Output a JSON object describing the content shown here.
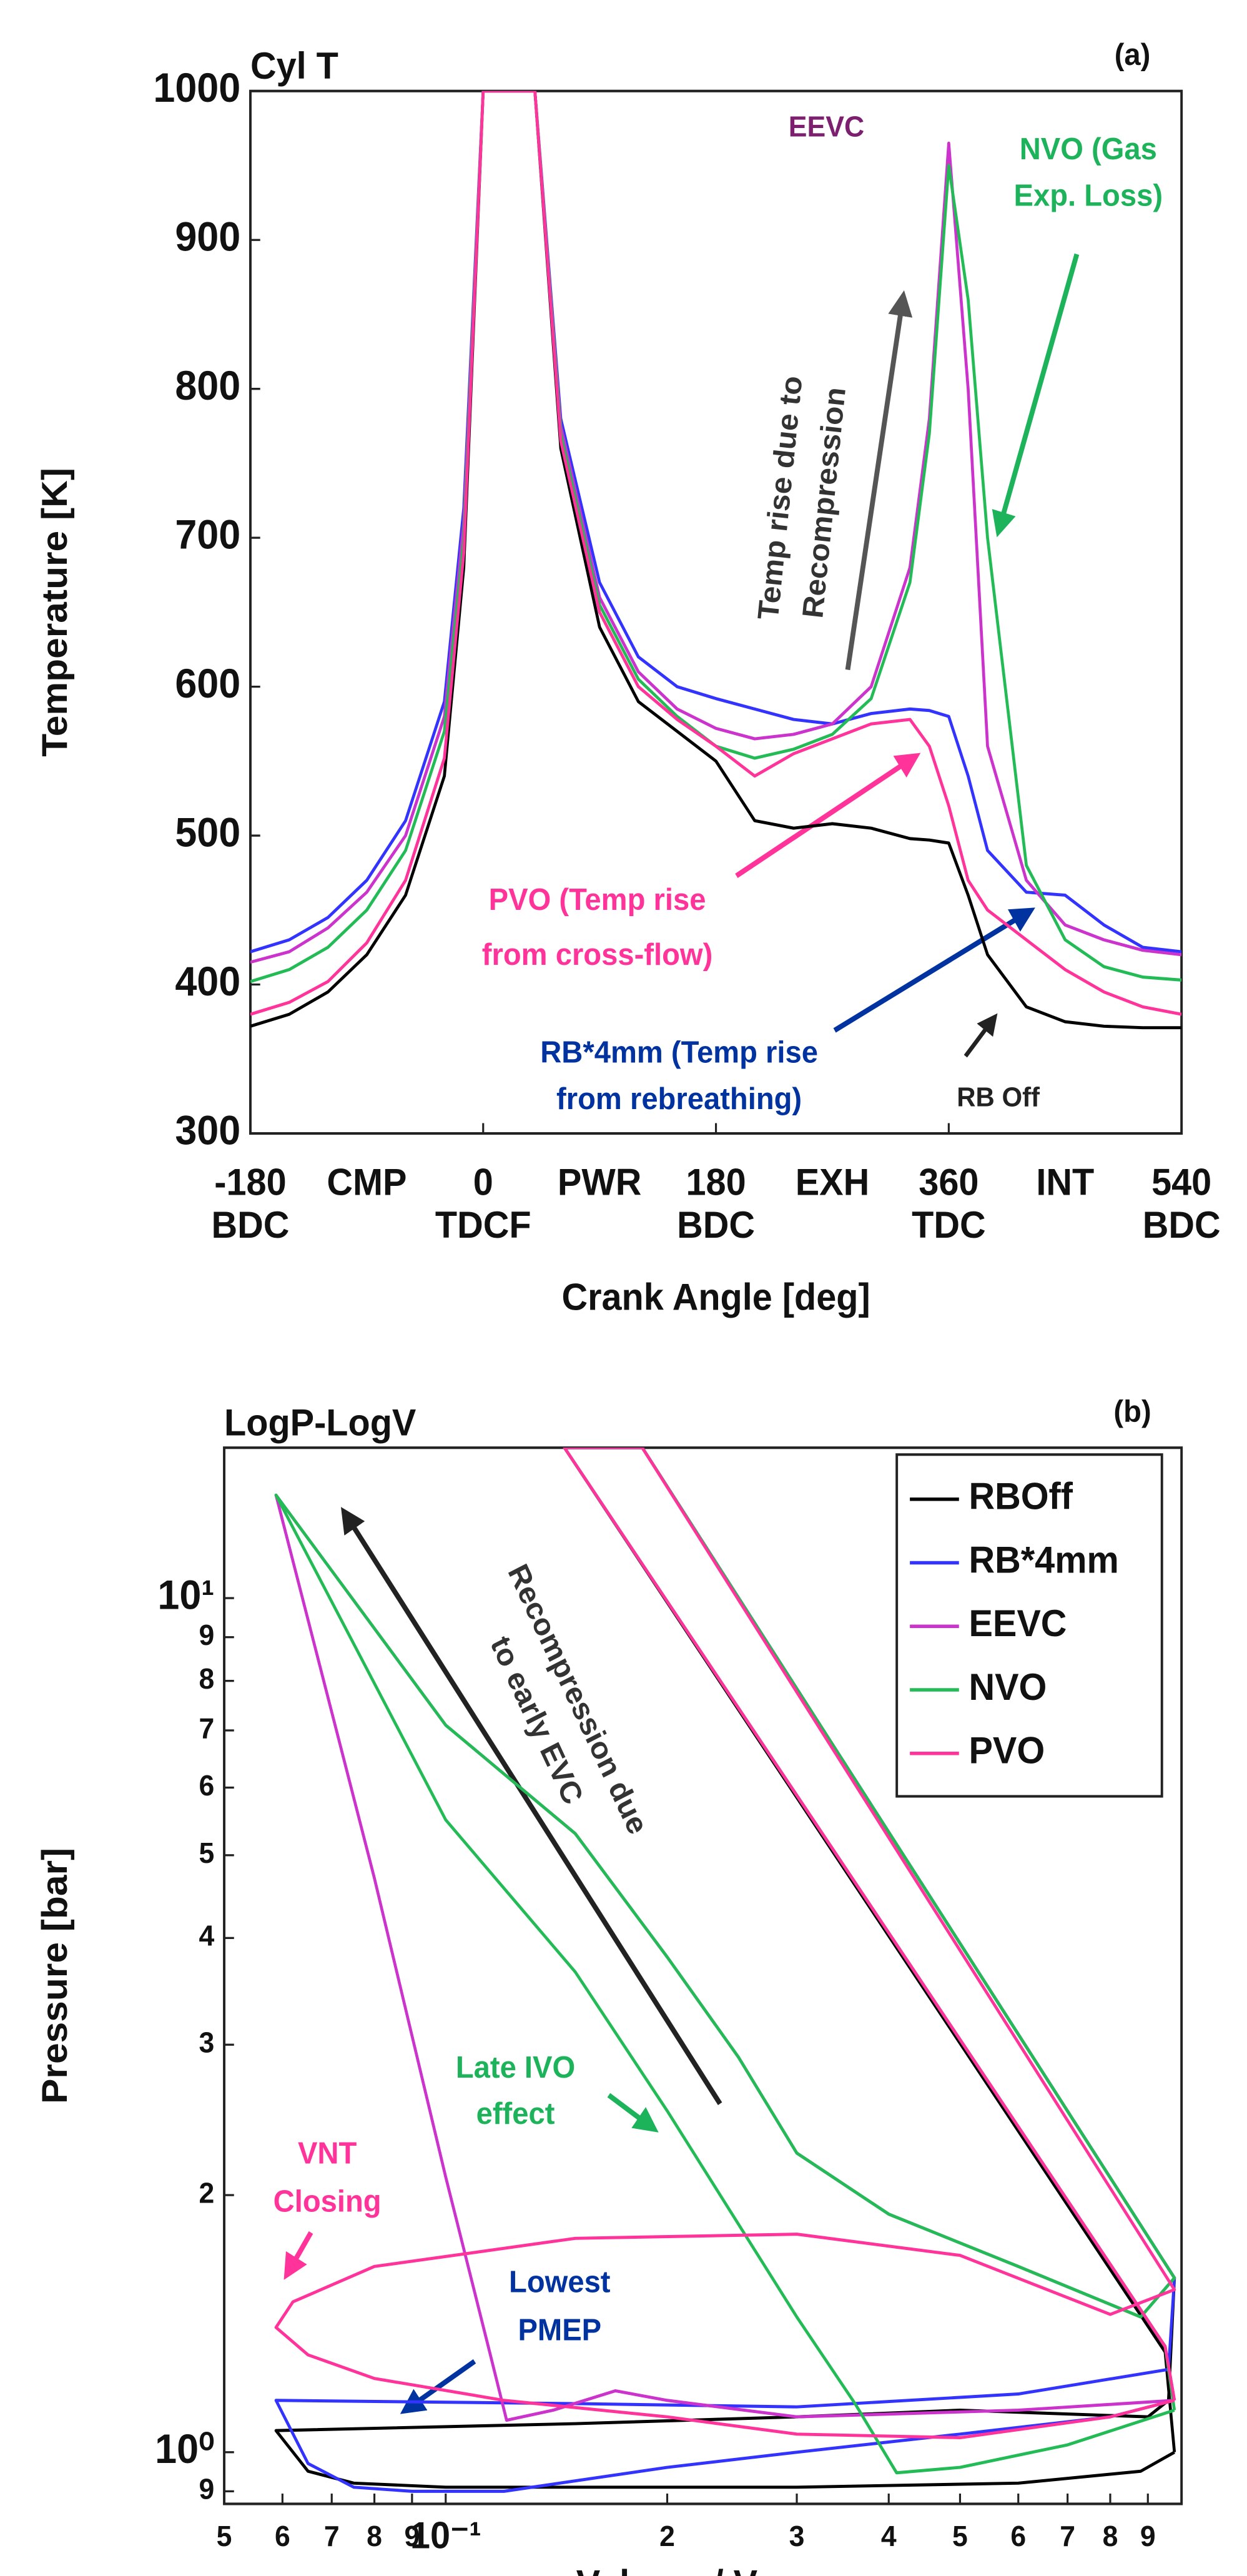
{
  "chart_data": [
    {
      "type": "line",
      "title": "Cyl T",
      "panel": "(a)",
      "xlabel": "Crank Angle [deg]",
      "ylabel": "Temperature [K]",
      "x": [
        -180,
        -150,
        -120,
        -90,
        -60,
        -30,
        -15,
        0,
        20,
        40,
        60,
        90,
        120,
        150,
        180,
        210,
        240,
        270,
        300,
        330,
        345,
        360,
        375,
        390,
        420,
        450,
        480,
        510,
        540
      ],
      "series": [
        {
          "color": "#000000",
          "values": [
            372,
            380,
            395,
            420,
            460,
            540,
            680,
            1000,
            1000,
            1000,
            760,
            640,
            590,
            570,
            550,
            510,
            505,
            508,
            505,
            498,
            497,
            495,
            460,
            420,
            385,
            375,
            372,
            371,
            371
          ]
        },
        {
          "color": "#3333ff",
          "values": [
            422,
            430,
            445,
            470,
            510,
            590,
            720,
            1000,
            1000,
            1000,
            780,
            670,
            620,
            600,
            592,
            585,
            578,
            575,
            582,
            585,
            584,
            580,
            540,
            490,
            462,
            460,
            440,
            425,
            422
          ]
        },
        {
          "color": "#cc33cc",
          "values": [
            415,
            422,
            438,
            462,
            500,
            580,
            710,
            1000,
            1000,
            1000,
            775,
            660,
            610,
            585,
            572,
            565,
            568,
            575,
            600,
            680,
            780,
            965,
            800,
            560,
            470,
            440,
            430,
            423,
            420
          ]
        },
        {
          "color": "#22bb55",
          "values": [
            402,
            410,
            425,
            450,
            490,
            570,
            700,
            1000,
            1000,
            1000,
            770,
            655,
            605,
            580,
            560,
            552,
            558,
            568,
            592,
            670,
            770,
            950,
            860,
            700,
            480,
            430,
            412,
            405,
            403
          ]
        },
        {
          "color": "#ff3399",
          "values": [
            380,
            388,
            402,
            428,
            470,
            552,
            690,
            1000,
            1000,
            1000,
            765,
            650,
            600,
            578,
            560,
            540,
            555,
            565,
            575,
            578,
            560,
            520,
            470,
            450,
            430,
            410,
            395,
            385,
            380
          ]
        }
      ],
      "xlim": [
        -180,
        540
      ],
      "xticks": [
        -180,
        0,
        180,
        360,
        540
      ],
      "xtick_sublabels": [
        "BDC",
        "TDCF",
        "BDC",
        "TDC",
        "BDC"
      ],
      "phase_labels": [
        {
          "value": -90,
          "label": "CMP"
        },
        {
          "value": 90,
          "label": "PWR"
        },
        {
          "value": 270,
          "label": "EXH"
        },
        {
          "value": 450,
          "label": "INT"
        }
      ],
      "ylim": [
        300,
        1000
      ],
      "yticks": [
        300,
        400,
        500,
        600,
        700,
        800,
        900,
        1000
      ],
      "annotations": [
        {
          "text": [
            "EEVC"
          ],
          "color": "#7b1f6e"
        },
        {
          "text": [
            "NVO (Gas",
            "Exp. Loss)"
          ],
          "color": "#1db35a"
        },
        {
          "text": [
            "Temp rise due to",
            "Recompression"
          ],
          "color": "#333333"
        },
        {
          "text": [
            "PVO (Temp rise",
            "from cross-flow)"
          ],
          "color": "#ff3399"
        },
        {
          "text": [
            "RB*4mm (Temp rise",
            "from rebreathing)"
          ],
          "color": "#0033a0"
        },
        {
          "text": [
            "RB Off"
          ],
          "color": "#222222"
        }
      ]
    },
    {
      "type": "line",
      "title": "LogP-LogV",
      "panel": "(b)",
      "xlabel": "Volume / Vmax",
      "ylabel": "Pressure [bar]",
      "xlog": true,
      "ylog": true,
      "series": [
        {
          "name": "RBOff",
          "color": "#000000",
          "x": [
            0.978,
            0.95,
            0.145,
            0.185,
            0.978,
            0.96,
            0.9,
            0.5,
            0.3,
            0.15,
            0.0588,
            0.065,
            0.075,
            0.1,
            0.3,
            0.6,
            0.88,
            0.978
          ],
          "values": [
            1.0,
            1.31,
            15,
            15,
            1.6,
            1.15,
            1.1,
            1.12,
            1.1,
            1.08,
            1.06,
            0.95,
            0.92,
            0.91,
            0.91,
            0.92,
            0.95,
            1.0
          ]
        },
        {
          "name": "RB*4mm",
          "color": "#3333ff",
          "x": [
            0.978,
            0.95,
            0.145,
            0.185,
            0.978,
            0.96,
            0.6,
            0.3,
            0.15,
            0.0588,
            0.065,
            0.075,
            0.09,
            0.12,
            0.2,
            0.3,
            0.5,
            0.8,
            0.978
          ],
          "values": [
            1.15,
            1.33,
            15,
            15,
            1.6,
            1.25,
            1.17,
            1.13,
            1.14,
            1.15,
            0.97,
            0.91,
            0.9,
            0.9,
            0.96,
            1.0,
            1.05,
            1.1,
            1.15
          ]
        },
        {
          "name": "EEVC",
          "color": "#cc33cc",
          "x": [
            0.978,
            0.95,
            0.145,
            0.185,
            0.978,
            0.88,
            0.6,
            0.4,
            0.3,
            0.25,
            0.2,
            0.15,
            0.1,
            0.0588,
            0.08,
            0.1,
            0.115,
            0.121,
            0.14,
            0.17,
            0.2,
            0.3,
            0.6,
            0.978
          ],
          "values": [
            1.15,
            1.33,
            15,
            15,
            1.6,
            1.44,
            1.65,
            1.9,
            2.24,
            2.9,
            3.8,
            5.3,
            7.1,
            13.2,
            4.7,
            2.1,
            1.3,
            1.09,
            1.12,
            1.18,
            1.15,
            1.1,
            1.12,
            1.15
          ]
        },
        {
          "name": "NVO",
          "color": "#22bb55",
          "x": [
            0.978,
            0.95,
            0.145,
            0.185,
            0.978,
            0.88,
            0.6,
            0.4,
            0.3,
            0.25,
            0.2,
            0.15,
            0.1,
            0.0588,
            0.1,
            0.15,
            0.2,
            0.3,
            0.36,
            0.41,
            0.5,
            0.7,
            0.978
          ],
          "values": [
            1.12,
            1.33,
            15,
            15,
            1.6,
            1.44,
            1.65,
            1.9,
            2.24,
            2.9,
            3.8,
            5.3,
            7.1,
            13.2,
            5.5,
            3.65,
            2.51,
            1.44,
            1.14,
            0.946,
            0.96,
            1.02,
            1.12
          ]
        },
        {
          "name": "PVO",
          "color": "#ff3399",
          "x": [
            0.978,
            0.95,
            0.145,
            0.185,
            0.978,
            0.8,
            0.5,
            0.3,
            0.15,
            0.08,
            0.062,
            0.0588,
            0.065,
            0.08,
            0.12,
            0.2,
            0.3,
            0.5,
            0.8,
            0.978
          ],
          "values": [
            1.15,
            1.33,
            15,
            15,
            1.55,
            1.45,
            1.7,
            1.8,
            1.78,
            1.65,
            1.5,
            1.4,
            1.3,
            1.22,
            1.15,
            1.1,
            1.05,
            1.04,
            1.1,
            1.15
          ]
        }
      ],
      "xlim": [
        0.05,
        1
      ],
      "xticks": [
        {
          "value": 0.05,
          "label": "5"
        },
        {
          "value": 0.06,
          "label": "6"
        },
        {
          "value": 0.07,
          "label": "7"
        },
        {
          "value": 0.08,
          "label": "8"
        },
        {
          "value": 0.09,
          "label": "9"
        },
        {
          "value": 0.1,
          "label": "10⁻¹"
        },
        {
          "value": 0.2,
          "label": "2"
        },
        {
          "value": 0.3,
          "label": "3"
        },
        {
          "value": 0.4,
          "label": "4"
        },
        {
          "value": 0.5,
          "label": "5"
        },
        {
          "value": 0.6,
          "label": "6"
        },
        {
          "value": 0.7,
          "label": "7"
        },
        {
          "value": 0.8,
          "label": "8"
        },
        {
          "value": 0.9,
          "label": "9"
        }
      ],
      "ylim": [
        0.87,
        15
      ],
      "yticks": [
        {
          "value": 0.9,
          "label": "9"
        },
        {
          "value": 1,
          "label": "10⁰"
        },
        2,
        3,
        4,
        5,
        6,
        7,
        8,
        9,
        {
          "value": 10,
          "label": "10¹"
        }
      ],
      "legend": "upper right",
      "annotations": [
        {
          "text": [
            "Recompression due",
            "to early EVC"
          ],
          "color": "#333333"
        },
        {
          "text": [
            "Late IVO",
            "effect"
          ],
          "color": "#1db35a"
        },
        {
          "text": [
            "VNT",
            "Closing"
          ],
          "color": "#ff3399"
        },
        {
          "text": [
            "Lowest",
            "PMEP"
          ],
          "color": "#0033a0"
        }
      ]
    }
  ]
}
